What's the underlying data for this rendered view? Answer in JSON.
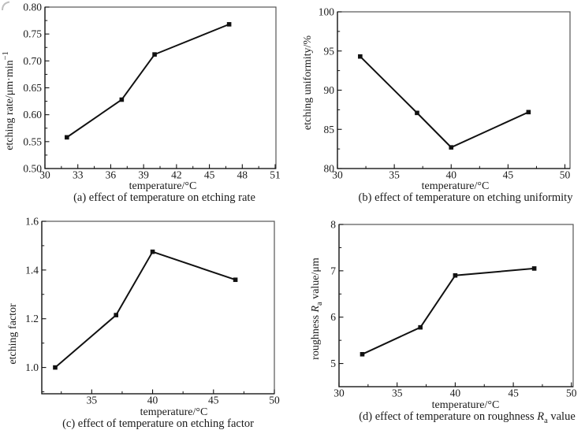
{
  "page": {
    "background": "#ffffff",
    "text_color": "#1a1a1a",
    "line_color": "#111111",
    "box_color": "#555555",
    "marker_style": "filled-square"
  },
  "chart_data": [
    {
      "id": "a",
      "type": "line",
      "caption": [
        {
          "t": "(a) effect of temperature on etching rate"
        }
      ],
      "xlabel": [
        {
          "t": "temperature/°C"
        }
      ],
      "ylabel": [
        {
          "t": "etching rate/μm·min"
        },
        {
          "t": "−1",
          "style": "sup"
        }
      ],
      "x": [
        32,
        37,
        40,
        46.8
      ],
      "y": [
        0.558,
        0.628,
        0.712,
        0.768
      ],
      "xlim": [
        30,
        51.07
      ],
      "ylim": [
        0.5,
        0.8
      ],
      "xticks": [
        30,
        33,
        36,
        39,
        42,
        45,
        48,
        51
      ],
      "yticks": [
        0.5,
        0.55,
        0.6,
        0.65,
        0.7,
        0.75,
        0.8
      ],
      "xtick_decimals": 0,
      "ytick_decimals": 2,
      "grid": false,
      "legend": null
    },
    {
      "id": "b",
      "type": "line",
      "caption": [
        {
          "t": "(b) effect of temperature on etching uniformity"
        }
      ],
      "xlabel": [
        {
          "t": "temperature/°C"
        }
      ],
      "ylabel": [
        {
          "t": "etching uniformity/%"
        }
      ],
      "x": [
        32,
        37,
        40,
        46.8
      ],
      "y": [
        94.3,
        87.1,
        82.7,
        87.2
      ],
      "xlim": [
        30,
        50.45
      ],
      "ylim": [
        80,
        100
      ],
      "xticks": [
        30,
        35,
        40,
        45,
        50
      ],
      "yticks": [
        80,
        85,
        90,
        95,
        100
      ],
      "xtick_decimals": 0,
      "ytick_decimals": 0,
      "grid": false,
      "legend": null
    },
    {
      "id": "c",
      "type": "line",
      "caption": [
        {
          "t": "(c) effect of temperature on etching factor"
        }
      ],
      "xlabel": [
        {
          "t": "temperature/°C"
        }
      ],
      "ylabel": [
        {
          "t": "etching factor"
        }
      ],
      "x": [
        32,
        37,
        40,
        46.8
      ],
      "y": [
        1.0,
        1.215,
        1.475,
        1.36
      ],
      "xlim": [
        30.9,
        50
      ],
      "ylim": [
        0.892,
        1.6
      ],
      "xticks": [
        35,
        40,
        45,
        50
      ],
      "yticks": [
        1.0,
        1.2,
        1.4,
        1.6
      ],
      "xtick_decimals": 0,
      "ytick_decimals": 1,
      "grid": false,
      "legend": null
    },
    {
      "id": "d",
      "type": "line",
      "caption": [
        {
          "t": "(d) effect of temperature on roughness "
        },
        {
          "t": "R",
          "style": "italic"
        },
        {
          "t": "a",
          "style": "sub"
        },
        {
          "t": " value"
        }
      ],
      "xlabel": [
        {
          "t": "temperature/°C"
        }
      ],
      "ylabel": [
        {
          "t": "roughness "
        },
        {
          "t": "R",
          "style": "italic"
        },
        {
          "t": "a",
          "style": "sub"
        },
        {
          "t": " value/μm"
        }
      ],
      "x": [
        32,
        37,
        40,
        46.8
      ],
      "y": [
        5.2,
        5.78,
        6.9,
        7.05
      ],
      "xlim": [
        30,
        50.15
      ],
      "ylim": [
        4.5,
        8.0
      ],
      "xticks": [
        30,
        35,
        40,
        45,
        50
      ],
      "yticks": [
        5,
        6,
        7,
        8
      ],
      "xtick_decimals": 0,
      "ytick_decimals": 0,
      "grid": false,
      "legend": null
    }
  ]
}
